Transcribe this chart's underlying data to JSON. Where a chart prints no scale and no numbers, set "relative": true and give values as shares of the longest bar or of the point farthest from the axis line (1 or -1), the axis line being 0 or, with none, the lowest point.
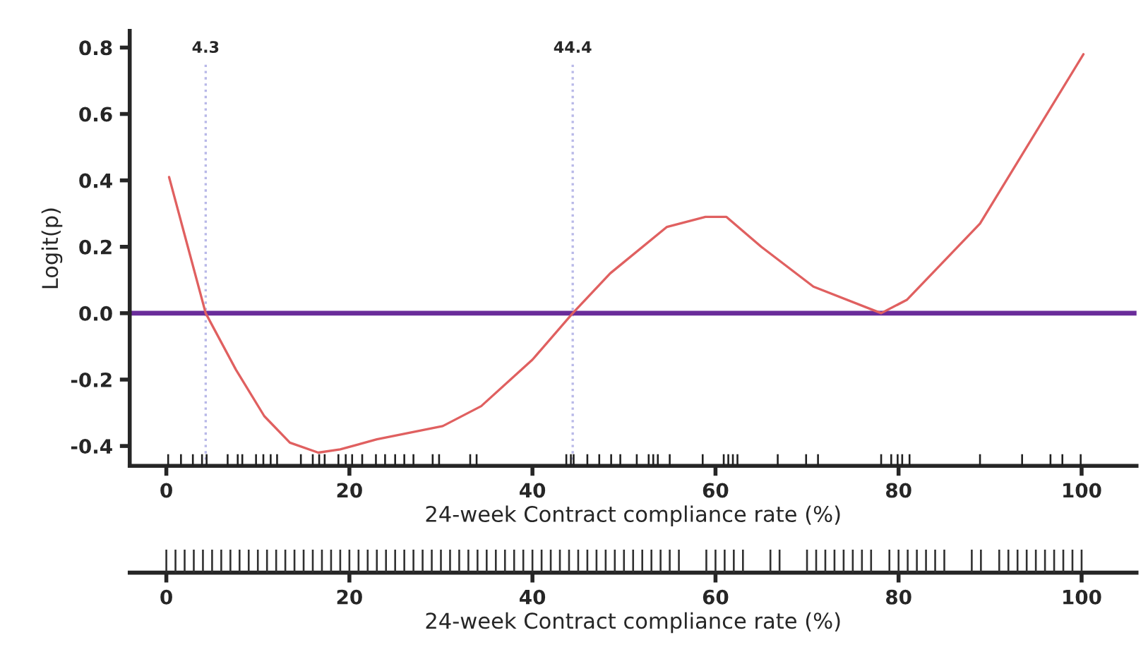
{
  "chart_data": [
    {
      "type": "line",
      "xlabel": "24-week Contract compliance rate (%)",
      "ylabel": "Logit(p)",
      "xlim": [
        -4,
        106
      ],
      "ylim": [
        -0.46,
        0.85
      ],
      "xticks": [
        0,
        20,
        40,
        60,
        80,
        100
      ],
      "yticks": [
        {
          "value": -0.4,
          "label": "-0.4"
        },
        {
          "value": -0.2,
          "label": "-0.2"
        },
        {
          "value": 0,
          "label": "0.0"
        },
        {
          "value": 0.2,
          "label": "0.2"
        },
        {
          "value": 0.4,
          "label": "0.4"
        },
        {
          "value": 0.6,
          "label": "0.6"
        },
        {
          "value": 0.8,
          "label": "0.8"
        }
      ],
      "grid": false,
      "legend": false,
      "ref_lines": [
        {
          "axis": "y",
          "value": 0,
          "label": null,
          "color": "#6a2c9a",
          "line_style": "solid"
        },
        {
          "axis": "x",
          "value": 4.3,
          "label": "4.3",
          "color": "#b8b8e8",
          "line_style": "dotted"
        },
        {
          "axis": "x",
          "value": 44.4,
          "label": "44.4",
          "color": "#b8b8e8",
          "line_style": "dotted"
        }
      ],
      "series": [
        {
          "type": "line",
          "color": "#e06060",
          "marker": "none",
          "line_style": "solid",
          "x": [
            0.3,
            4.3,
            7.6,
            10.7,
            13.5,
            16.6,
            19.0,
            23.0,
            30.2,
            34.4,
            40.0,
            44.4,
            48.5,
            54.7,
            58.9,
            61.2,
            65.0,
            70.7,
            78.1,
            80.9,
            88.9,
            100.2
          ],
          "values": [
            0.41,
            0.0,
            -0.17,
            -0.31,
            -0.39,
            -0.42,
            -0.41,
            -0.38,
            -0.34,
            -0.28,
            -0.14,
            0.0,
            0.12,
            0.26,
            0.29,
            0.29,
            0.2,
            0.08,
            0.0,
            0.04,
            0.27,
            0.78
          ]
        },
        {
          "type": "bar",
          "color": "#202020",
          "base": [
            -0.46,
            -0.46,
            -0.46,
            -0.46,
            -0.46,
            -0.46,
            -0.46,
            -0.46,
            -0.46,
            -0.46,
            -0.46,
            -0.46,
            -0.46,
            -0.46,
            -0.46,
            -0.46,
            -0.46,
            -0.46,
            -0.46,
            -0.46,
            -0.46,
            -0.46,
            -0.46,
            -0.46,
            -0.46,
            -0.46,
            -0.46,
            -0.46,
            -0.46,
            -0.46,
            -0.46,
            -0.46,
            -0.46,
            -0.46,
            -0.46,
            -0.46,
            -0.46,
            -0.46,
            -0.46,
            -0.46,
            -0.46,
            -0.46,
            -0.46,
            -0.46,
            -0.46,
            -0.46,
            -0.46,
            -0.46,
            -0.46,
            -0.46,
            -0.46,
            -0.46,
            -0.46,
            -0.46,
            -0.46,
            -0.46,
            -0.46,
            -0.46,
            -0.46
          ],
          "x": [
            0.2,
            1.6,
            2.9,
            3.9,
            4.4,
            6.7,
            7.8,
            8.3,
            9.8,
            10.6,
            11.4,
            12.1,
            14.7,
            16.0,
            16.7,
            17.3,
            18.8,
            19.6,
            20.3,
            21.4,
            22.9,
            23.9,
            25.0,
            26.0,
            27.0,
            29.1,
            29.8,
            33.2,
            33.9,
            43.7,
            44.2,
            44.5,
            46.0,
            47.3,
            48.6,
            49.6,
            51.4,
            52.7,
            53.2,
            53.7,
            55.0,
            58.6,
            60.9,
            61.4,
            61.9,
            62.4,
            66.8,
            69.9,
            71.2,
            78.1,
            79.2,
            79.9,
            80.4,
            81.2,
            88.9,
            93.5,
            96.6,
            97.9,
            99.9
          ],
          "values": [
            0.035,
            0.035,
            0.035,
            0.035,
            0.035,
            0.035,
            0.035,
            0.035,
            0.035,
            0.035,
            0.035,
            0.035,
            0.035,
            0.035,
            0.035,
            0.035,
            0.035,
            0.035,
            0.035,
            0.035,
            0.035,
            0.035,
            0.035,
            0.035,
            0.035,
            0.035,
            0.035,
            0.035,
            0.035,
            0.035,
            0.035,
            0.035,
            0.035,
            0.035,
            0.035,
            0.035,
            0.035,
            0.035,
            0.035,
            0.035,
            0.035,
            0.035,
            0.035,
            0.035,
            0.035,
            0.035,
            0.035,
            0.035,
            0.035,
            0.035,
            0.035,
            0.035,
            0.035,
            0.035,
            0.035,
            0.035,
            0.035,
            0.035,
            0.035
          ]
        }
      ]
    },
    {
      "type": "bar",
      "relative": true,
      "xlabel": "24-week Contract compliance rate (%)",
      "xlim": [
        -4,
        106
      ],
      "xticks": [
        0,
        20,
        40,
        60,
        80,
        100
      ],
      "tick_labels": "x",
      "color": "#303030",
      "x": [
        0,
        1,
        2,
        3,
        4,
        5,
        6,
        7,
        8,
        9,
        10,
        11,
        12,
        13,
        14,
        15,
        16,
        17,
        18,
        19,
        20,
        21,
        22,
        23,
        24,
        25,
        26,
        27,
        28,
        29,
        30,
        31,
        32,
        33,
        34,
        35,
        36,
        37,
        38,
        39,
        40,
        41,
        42,
        43,
        44,
        45,
        46,
        47,
        48,
        49,
        50,
        51,
        52,
        53,
        54,
        55,
        56,
        59,
        60,
        61,
        62,
        63,
        66,
        67,
        70,
        71,
        72,
        73,
        74,
        75,
        76,
        77,
        79,
        80,
        81,
        82,
        83,
        84,
        85,
        88,
        89,
        91,
        92,
        93,
        94,
        95,
        96,
        97,
        98,
        99,
        100
      ],
      "values": [
        1,
        1,
        1,
        1,
        1,
        1,
        1,
        1,
        1,
        1,
        1,
        1,
        1,
        1,
        1,
        1,
        1,
        1,
        1,
        1,
        1,
        1,
        1,
        1,
        1,
        1,
        1,
        1,
        1,
        1,
        1,
        1,
        1,
        1,
        1,
        1,
        1,
        1,
        1,
        1,
        1,
        1,
        1,
        1,
        1,
        1,
        1,
        1,
        1,
        1,
        1,
        1,
        1,
        1,
        1,
        1,
        1,
        1,
        1,
        1,
        1,
        1,
        1,
        1,
        1,
        1,
        1,
        1,
        1,
        1,
        1,
        1,
        1,
        1,
        1,
        1,
        1,
        1,
        1,
        1,
        1,
        1,
        1,
        1,
        1,
        1,
        1,
        1,
        1,
        1,
        1
      ]
    }
  ]
}
